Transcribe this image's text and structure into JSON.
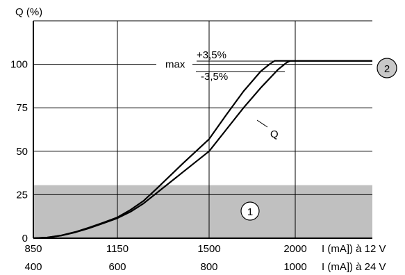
{
  "chart_data": {
    "type": "line",
    "ylabel": "Q (%)",
    "ylim": [
      0,
      125
    ],
    "yticks": [
      0,
      25,
      50,
      75,
      100
    ],
    "xlim": [
      850,
      2300
    ],
    "x_axes": [
      {
        "label": "I (mA]) à 12 V",
        "ticks": [
          850,
          1150,
          1500,
          2000
        ],
        "tick_labels": [
          "850",
          "1150",
          "1500",
          "2000"
        ]
      },
      {
        "label": "I (mA]) à 24 V",
        "ticks": [
          400,
          600,
          800,
          1000
        ],
        "tick_labels": [
          "400",
          "600",
          "800",
          "1000"
        ]
      }
    ],
    "grid": true,
    "shaded_region": {
      "y": [
        0,
        30.5
      ],
      "color": "#c0c0c0",
      "marker": "1"
    },
    "series": [
      {
        "color": "#000000",
        "points": [
          [
            850,
            0
          ],
          [
            900,
            0.4
          ],
          [
            950,
            1.6
          ],
          [
            1000,
            3.6
          ],
          [
            1050,
            6.2
          ],
          [
            1100,
            9
          ],
          [
            1150,
            12
          ],
          [
            1200,
            16.3
          ],
          [
            1250,
            21.5
          ],
          [
            1300,
            28.5
          ],
          [
            1400,
            43
          ],
          [
            1500,
            57
          ],
          [
            1600,
            71
          ],
          [
            1700,
            84.5
          ],
          [
            1800,
            96
          ],
          [
            1850,
            100
          ],
          [
            1880,
            102
          ],
          [
            2300,
            102
          ]
        ]
      },
      {
        "color": "#000000",
        "points": [
          [
            850,
            0
          ],
          [
            900,
            0.4
          ],
          [
            950,
            1.5
          ],
          [
            1000,
            3.4
          ],
          [
            1050,
            5.8
          ],
          [
            1100,
            8.6
          ],
          [
            1150,
            11.5
          ],
          [
            1200,
            15.2
          ],
          [
            1250,
            20
          ],
          [
            1300,
            26
          ],
          [
            1400,
            38
          ],
          [
            1500,
            50
          ],
          [
            1600,
            62.5
          ],
          [
            1700,
            75
          ],
          [
            1800,
            86.5
          ],
          [
            1900,
            97
          ],
          [
            1950,
            101
          ],
          [
            1970,
            102
          ],
          [
            2300,
            102
          ]
        ]
      }
    ],
    "annotations": {
      "max_label": "max",
      "plus_label": "+3,5%",
      "minus_label": "-3,5%",
      "curve_label": "Q",
      "marker_1": "1",
      "marker_2": "2"
    }
  }
}
